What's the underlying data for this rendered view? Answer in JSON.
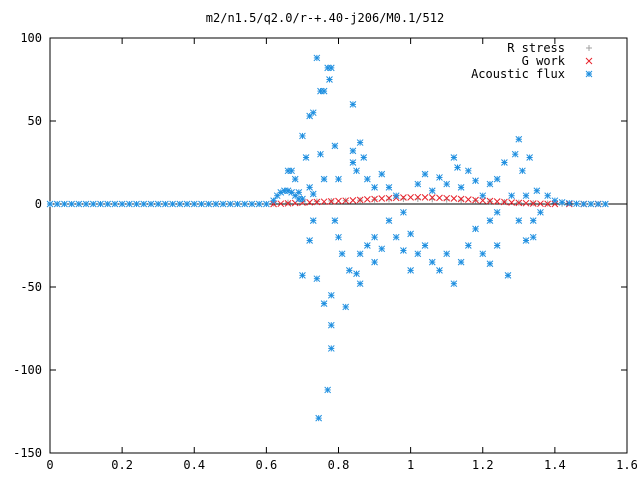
{
  "chart_data": {
    "type": "scatter",
    "title": "m2/n1.5/q2.0/r-+.40-j206/M0.1/512",
    "xlabel": "",
    "ylabel": "",
    "xlim": [
      0,
      1.6
    ],
    "ylim": [
      -150,
      100
    ],
    "grid": false,
    "legend_position": "top-right",
    "x_ticks": [
      0,
      0.2,
      0.4,
      0.6,
      0.8,
      1,
      1.2,
      1.4,
      1.6
    ],
    "x_tick_labels": [
      "0",
      "0.2",
      "0.4",
      "0.6",
      "0.8",
      "1",
      "1.2",
      "1.4",
      "1.6"
    ],
    "y_ticks": [
      -150,
      -100,
      -50,
      0,
      50,
      100
    ],
    "y_tick_labels": [
      "-150",
      "-100",
      "-50",
      "0",
      "50",
      "100"
    ],
    "series": [
      {
        "name": "R stress",
        "marker": "plus",
        "color": "#a0a0a0",
        "points": [
          [
            0.62,
            0.3
          ],
          [
            0.66,
            0.8
          ],
          [
            0.7,
            1.2
          ],
          [
            0.74,
            1.5
          ],
          [
            0.78,
            1.8
          ],
          [
            0.82,
            2.0
          ],
          [
            0.86,
            2.3
          ],
          [
            0.9,
            2.6
          ],
          [
            0.94,
            2.8
          ],
          [
            0.98,
            3.0
          ],
          [
            1.02,
            3.0
          ],
          [
            1.06,
            2.8
          ],
          [
            1.1,
            2.6
          ],
          [
            1.14,
            2.3
          ],
          [
            1.18,
            2.0
          ],
          [
            1.22,
            1.6
          ],
          [
            1.26,
            1.2
          ],
          [
            1.3,
            0.8
          ],
          [
            1.34,
            0.5
          ],
          [
            1.38,
            0.3
          ],
          [
            1.42,
            0.1
          ],
          [
            1.46,
            0.0
          ],
          [
            1.5,
            0.0
          ]
        ]
      },
      {
        "name": "G work",
        "marker": "cross",
        "color": "#e8202a",
        "points": [
          [
            0.62,
            0.0
          ],
          [
            0.64,
            0.2
          ],
          [
            0.66,
            0.4
          ],
          [
            0.68,
            0.6
          ],
          [
            0.7,
            0.8
          ],
          [
            0.72,
            1.0
          ],
          [
            0.74,
            1.2
          ],
          [
            0.76,
            1.4
          ],
          [
            0.78,
            1.6
          ],
          [
            0.8,
            1.8
          ],
          [
            0.82,
            2.0
          ],
          [
            0.84,
            2.2
          ],
          [
            0.86,
            2.5
          ],
          [
            0.88,
            2.8
          ],
          [
            0.9,
            3.0
          ],
          [
            0.92,
            3.3
          ],
          [
            0.94,
            3.5
          ],
          [
            0.96,
            3.7
          ],
          [
            0.98,
            3.9
          ],
          [
            1.0,
            4.0
          ],
          [
            1.02,
            4.1
          ],
          [
            1.04,
            4.0
          ],
          [
            1.06,
            3.9
          ],
          [
            1.08,
            3.7
          ],
          [
            1.1,
            3.5
          ],
          [
            1.12,
            3.3
          ],
          [
            1.14,
            3.0
          ],
          [
            1.16,
            2.7
          ],
          [
            1.18,
            2.4
          ],
          [
            1.2,
            2.1
          ],
          [
            1.22,
            1.8
          ],
          [
            1.24,
            1.5
          ],
          [
            1.26,
            1.2
          ],
          [
            1.28,
            0.9
          ],
          [
            1.3,
            0.7
          ],
          [
            1.32,
            0.5
          ],
          [
            1.34,
            0.3
          ],
          [
            1.36,
            0.2
          ],
          [
            1.38,
            0.1
          ],
          [
            1.4,
            0.0
          ],
          [
            1.44,
            0.0
          ],
          [
            1.48,
            0.0
          ],
          [
            1.52,
            0.0
          ]
        ]
      },
      {
        "name": "Acoustic flux",
        "marker": "star",
        "color": "#1f8fe0",
        "points": [
          [
            0.0,
            0
          ],
          [
            0.02,
            0
          ],
          [
            0.04,
            0
          ],
          [
            0.06,
            0
          ],
          [
            0.08,
            0
          ],
          [
            0.1,
            0
          ],
          [
            0.12,
            0
          ],
          [
            0.14,
            0
          ],
          [
            0.16,
            0
          ],
          [
            0.18,
            0
          ],
          [
            0.2,
            0
          ],
          [
            0.22,
            0
          ],
          [
            0.24,
            0
          ],
          [
            0.26,
            0
          ],
          [
            0.28,
            0
          ],
          [
            0.3,
            0
          ],
          [
            0.32,
            0
          ],
          [
            0.34,
            0
          ],
          [
            0.36,
            0
          ],
          [
            0.38,
            0
          ],
          [
            0.4,
            0
          ],
          [
            0.42,
            0
          ],
          [
            0.44,
            0
          ],
          [
            0.46,
            0
          ],
          [
            0.48,
            0
          ],
          [
            0.5,
            0
          ],
          [
            0.52,
            0
          ],
          [
            0.54,
            0
          ],
          [
            0.56,
            0
          ],
          [
            0.58,
            0
          ],
          [
            0.6,
            0
          ],
          [
            0.62,
            2
          ],
          [
            0.63,
            5
          ],
          [
            0.64,
            7
          ],
          [
            0.65,
            8
          ],
          [
            0.66,
            8
          ],
          [
            0.67,
            7
          ],
          [
            0.68,
            5
          ],
          [
            0.69,
            3
          ],
          [
            0.66,
            20
          ],
          [
            0.67,
            20
          ],
          [
            0.68,
            15
          ],
          [
            0.69,
            7
          ],
          [
            0.7,
            3
          ],
          [
            0.7,
            41
          ],
          [
            0.71,
            28
          ],
          [
            0.72,
            10
          ],
          [
            0.73,
            6
          ],
          [
            0.7,
            -43
          ],
          [
            0.72,
            -22
          ],
          [
            0.73,
            -10
          ],
          [
            0.72,
            53
          ],
          [
            0.73,
            55
          ],
          [
            0.74,
            88
          ],
          [
            0.75,
            68
          ],
          [
            0.76,
            68
          ],
          [
            0.77,
            82
          ],
          [
            0.775,
            75
          ],
          [
            0.78,
            82
          ],
          [
            0.75,
            30
          ],
          [
            0.76,
            15
          ],
          [
            0.74,
            -45
          ],
          [
            0.76,
            -60
          ],
          [
            0.78,
            -55
          ],
          [
            0.78,
            -73
          ],
          [
            0.78,
            -87
          ],
          [
            0.77,
            -112
          ],
          [
            0.745,
            -129
          ],
          [
            0.8,
            15
          ],
          [
            0.79,
            35
          ],
          [
            0.79,
            -10
          ],
          [
            0.8,
            -20
          ],
          [
            0.81,
            -30
          ],
          [
            0.83,
            -40
          ],
          [
            0.82,
            -62
          ],
          [
            0.84,
            60
          ],
          [
            0.84,
            25
          ],
          [
            0.85,
            -42
          ],
          [
            0.86,
            -48
          ],
          [
            0.84,
            32
          ],
          [
            0.85,
            20
          ],
          [
            0.86,
            37
          ],
          [
            0.87,
            28
          ],
          [
            0.88,
            15
          ],
          [
            0.86,
            -30
          ],
          [
            0.88,
            -25
          ],
          [
            0.9,
            -35
          ],
          [
            0.9,
            -20
          ],
          [
            0.92,
            -27
          ],
          [
            0.9,
            10
          ],
          [
            0.92,
            18
          ],
          [
            0.94,
            10
          ],
          [
            0.96,
            5
          ],
          [
            0.98,
            -5
          ],
          [
            1.0,
            -18
          ],
          [
            1.02,
            -30
          ],
          [
            1.04,
            -25
          ],
          [
            1.06,
            -35
          ],
          [
            1.08,
            -40
          ],
          [
            0.94,
            -10
          ],
          [
            0.96,
            -20
          ],
          [
            0.98,
            -28
          ],
          [
            1.0,
            -40
          ],
          [
            1.02,
            12
          ],
          [
            1.04,
            18
          ],
          [
            1.06,
            8
          ],
          [
            1.08,
            16
          ],
          [
            1.1,
            12
          ],
          [
            1.12,
            28
          ],
          [
            1.13,
            22
          ],
          [
            1.1,
            -30
          ],
          [
            1.12,
            -48
          ],
          [
            1.14,
            -35
          ],
          [
            1.16,
            -25
          ],
          [
            1.18,
            -15
          ],
          [
            1.2,
            -30
          ],
          [
            1.22,
            -10
          ],
          [
            1.24,
            -5
          ],
          [
            1.22,
            -36
          ],
          [
            1.24,
            -25
          ],
          [
            1.14,
            10
          ],
          [
            1.16,
            20
          ],
          [
            1.18,
            14
          ],
          [
            1.2,
            5
          ],
          [
            1.22,
            12
          ],
          [
            1.24,
            15
          ],
          [
            1.26,
            25
          ],
          [
            1.27,
            -43
          ],
          [
            1.28,
            5
          ],
          [
            1.29,
            30
          ],
          [
            1.3,
            39
          ],
          [
            1.31,
            20
          ],
          [
            1.32,
            5
          ],
          [
            1.33,
            28
          ],
          [
            1.34,
            -10
          ],
          [
            1.35,
            8
          ],
          [
            1.36,
            -5
          ],
          [
            1.3,
            -10
          ],
          [
            1.32,
            -22
          ],
          [
            1.34,
            -20
          ],
          [
            1.38,
            5
          ],
          [
            1.4,
            2
          ],
          [
            1.42,
            1
          ],
          [
            1.44,
            0.5
          ],
          [
            1.46,
            0.2
          ],
          [
            1.48,
            0
          ],
          [
            1.5,
            0
          ],
          [
            1.52,
            0
          ],
          [
            1.54,
            0
          ]
        ]
      }
    ]
  }
}
